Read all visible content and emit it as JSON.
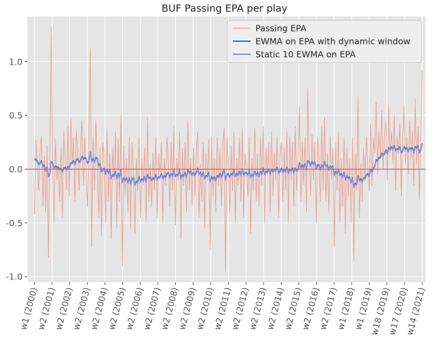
{
  "chart_data": {
    "type": "line",
    "title": "BUF Passing EPA per play",
    "xlabel": "",
    "ylabel": "",
    "ylim": [
      -1.05,
      1.42
    ],
    "xlim": [
      -5,
      560
    ],
    "grid": true,
    "legend_position": "top-right",
    "yticks": [
      -1.0,
      -0.5,
      0.0,
      0.5,
      1.0
    ],
    "ytick_labels": [
      "-1.0",
      "-0.5",
      "0.0",
      "0.5",
      "1.0"
    ],
    "xticks": [
      {
        "x": 5,
        "label": "w1 (2000)"
      },
      {
        "x": 30,
        "label": "w2 (2001)"
      },
      {
        "x": 55,
        "label": "w2 (2002)"
      },
      {
        "x": 80,
        "label": "w2 (2003)"
      },
      {
        "x": 105,
        "label": "w2 (2004)"
      },
      {
        "x": 130,
        "label": "w2 (2005)"
      },
      {
        "x": 155,
        "label": "w2 (2006)"
      },
      {
        "x": 180,
        "label": "w2 (2007)"
      },
      {
        "x": 205,
        "label": "w2 (2008)"
      },
      {
        "x": 230,
        "label": "w2 (2009)"
      },
      {
        "x": 255,
        "label": "w2 (2010)"
      },
      {
        "x": 280,
        "label": "w2 (2011)"
      },
      {
        "x": 305,
        "label": "w2 (2012)"
      },
      {
        "x": 330,
        "label": "w2 (2013)"
      },
      {
        "x": 355,
        "label": "w2 (2014)"
      },
      {
        "x": 380,
        "label": "w2 (2015)"
      },
      {
        "x": 405,
        "label": "w2 (2016)"
      },
      {
        "x": 430,
        "label": "w2 (2017)"
      },
      {
        "x": 455,
        "label": "w1 (2018)"
      },
      {
        "x": 480,
        "label": "w1 (2019)"
      },
      {
        "x": 505,
        "label": "w18 (2019)"
      },
      {
        "x": 530,
        "label": "w17 (2020)"
      },
      {
        "x": 555,
        "label": "w14 (2021)"
      }
    ],
    "hline": {
      "y": 0.0,
      "color": "#e8585a"
    },
    "colors": {
      "background": "#e5e5e5",
      "grid": "#ffffff",
      "passing_epa": "#e8a090",
      "dynamic": "#2a7ab8",
      "static": "#8f8fe0"
    },
    "series": [
      {
        "name": "Passing EPA",
        "values": [
          -0.42,
          0.27,
          0.05,
          -0.2,
          0.18,
          0.3,
          -0.35,
          0.12,
          -0.4,
          0.22,
          -0.82,
          0.15,
          1.32,
          0.0,
          -0.5,
          0.28,
          -0.1,
          0.05,
          -0.3,
          0.2,
          -0.45,
          0.35,
          0.1,
          -0.2,
          0.4,
          -0.25,
          0.48,
          0.05,
          0.3,
          -0.3,
          0.35,
          0.15,
          -0.2,
          0.22,
          0.45,
          -0.15,
          0.3,
          0.0,
          -0.35,
          0.25,
          1.12,
          -0.72,
          0.3,
          -0.2,
          0.45,
          0.05,
          -0.45,
          0.2,
          -0.62,
          0.25,
          0.1,
          -0.5,
          0.38,
          -0.3,
          0.15,
          -0.65,
          0.2,
          -0.1,
          0.35,
          -0.55,
          0.28,
          -0.3,
          0.5,
          -0.9,
          0.22,
          -0.25,
          0.1,
          -0.4,
          0.3,
          -0.55,
          0.25,
          0.0,
          -0.6,
          0.1,
          -0.2,
          0.3,
          -0.45,
          0.1,
          -0.15,
          0.2,
          -0.5,
          0.48,
          -0.3,
          0.05,
          -0.35,
          0.15,
          -0.2,
          0.3,
          -0.45,
          0.15,
          -0.05,
          0.25,
          -0.5,
          0.1,
          -0.15,
          0.3,
          0.05,
          -0.35,
          0.25,
          -0.2,
          0.4,
          -0.52,
          0.1,
          -0.1,
          0.35,
          -0.65,
          0.2,
          -0.15,
          0.25,
          -0.4,
          0.45,
          -0.2,
          0.1,
          -0.35,
          0.2,
          -0.25,
          0.15,
          0.35,
          -0.45,
          0.05,
          -0.3,
          0.25,
          -0.55,
          0.15,
          -0.1,
          0.28,
          -0.75,
          0.3,
          -0.25,
          0.1,
          -0.4,
          0.3,
          -0.15,
          0.2,
          -0.35,
          0.25,
          0.38,
          -0.95,
          0.3,
          0.05,
          -0.4,
          0.22,
          -0.2,
          0.35,
          -0.5,
          0.1,
          -0.15,
          0.3,
          -0.3,
          0.38,
          -0.45,
          0.15,
          0.0,
          -0.25,
          0.3,
          -0.6,
          0.1,
          -0.2,
          0.38,
          -0.3,
          0.15,
          -0.35,
          0.3,
          -0.15,
          0.4,
          -0.5,
          0.2,
          -0.05,
          0.25,
          -0.4,
          0.35,
          -0.25,
          0.15,
          -0.1,
          0.3,
          -0.45,
          0.1,
          0.25,
          -0.3,
          0.2,
          -0.2,
          0.35,
          -0.5,
          0.3,
          -0.1,
          0.25,
          -0.35,
          0.4,
          -0.2,
          0.1,
          0.58,
          -0.3,
          0.25,
          -0.15,
          0.3,
          -0.4,
          0.75,
          0.05,
          -0.25,
          0.32,
          -0.1,
          0.25,
          -0.5,
          0.3,
          0.05,
          -0.3,
          0.4,
          -0.2,
          0.48,
          -0.3,
          0.15,
          -0.4,
          0.3,
          -0.1,
          0.2,
          -0.72,
          0.25,
          -0.2,
          0.35,
          -0.5,
          0.1,
          -0.35,
          0.3,
          -0.6,
          0.2,
          -0.25,
          0.1,
          -0.5,
          0.3,
          -0.85,
          0.15,
          -0.2,
          0.68,
          -0.45,
          0.05,
          -0.3,
          0.2,
          -0.1,
          0.3,
          0.05,
          -0.2,
          0.42,
          -0.15,
          0.3,
          0.15,
          0.62,
          -0.05,
          0.35,
          0.1,
          0.55,
          0.0,
          0.3,
          0.45,
          -0.1,
          0.6,
          0.15,
          0.35,
          0.05,
          0.5,
          -0.2,
          0.3,
          0.15,
          0.42,
          -0.25,
          0.25,
          0.58,
          0.05,
          0.3,
          -0.05,
          0.45,
          0.1,
          0.35,
          -0.15,
          0.65,
          0.05,
          0.4,
          -0.28,
          0.3,
          0.92
        ]
      },
      {
        "name": "EWMA on EPA with dynamic window",
        "values": [
          0.1,
          0.09,
          0.08,
          0.05,
          0.06,
          0.08,
          0.03,
          0.04,
          -0.01,
          0.02,
          -0.06,
          -0.04,
          0.07,
          0.06,
          0.01,
          0.03,
          0.02,
          0.02,
          -0.0,
          0.01,
          -0.02,
          0.01,
          0.02,
          0.0,
          0.03,
          0.01,
          0.06,
          0.06,
          0.08,
          0.05,
          0.09,
          0.1,
          0.07,
          0.08,
          0.12,
          0.1,
          0.11,
          0.1,
          0.06,
          0.08,
          0.16,
          0.08,
          0.1,
          0.07,
          0.11,
          0.1,
          0.04,
          0.05,
          -0.02,
          0.0,
          0.01,
          -0.04,
          -0.0,
          -0.03,
          -0.01,
          -0.08,
          -0.05,
          -0.06,
          -0.02,
          -0.08,
          -0.04,
          -0.07,
          -0.01,
          -0.12,
          -0.08,
          -0.1,
          -0.08,
          -0.12,
          -0.08,
          -0.13,
          -0.09,
          -0.08,
          -0.14,
          -0.11,
          -0.12,
          -0.07,
          -0.11,
          -0.09,
          -0.1,
          -0.07,
          -0.11,
          -0.05,
          -0.08,
          -0.07,
          -0.1,
          -0.08,
          -0.09,
          -0.05,
          -0.09,
          -0.07,
          -0.07,
          -0.04,
          -0.08,
          -0.06,
          -0.07,
          -0.04,
          -0.03,
          -0.07,
          -0.04,
          -0.06,
          -0.01,
          -0.06,
          -0.05,
          -0.05,
          -0.01,
          -0.08,
          -0.05,
          -0.06,
          -0.03,
          -0.07,
          -0.01,
          -0.03,
          -0.02,
          -0.05,
          -0.03,
          -0.05,
          -0.03,
          0.01,
          -0.04,
          -0.03,
          -0.06,
          -0.03,
          -0.08,
          -0.06,
          -0.06,
          -0.03,
          -0.11,
          -0.07,
          -0.09,
          -0.07,
          -0.1,
          -0.06,
          -0.07,
          -0.04,
          -0.07,
          -0.04,
          0.0,
          -0.09,
          -0.05,
          -0.04,
          -0.07,
          -0.04,
          -0.05,
          -0.01,
          -0.06,
          -0.04,
          -0.05,
          -0.02,
          -0.05,
          -0.0,
          -0.05,
          -0.03,
          -0.03,
          -0.05,
          -0.01,
          -0.07,
          -0.05,
          -0.06,
          -0.02,
          -0.05,
          -0.03,
          -0.06,
          -0.02,
          -0.04,
          0.01,
          -0.04,
          -0.02,
          -0.02,
          0.0,
          -0.04,
          0.0,
          -0.02,
          -0.0,
          -0.01,
          0.02,
          -0.03,
          -0.02,
          0.01,
          -0.02,
          0.0,
          -0.02,
          0.02,
          -0.03,
          0.0,
          -0.01,
          0.01,
          -0.03,
          0.01,
          -0.01,
          -0.0,
          0.06,
          0.02,
          0.04,
          0.02,
          0.05,
          0.0,
          0.08,
          0.07,
          0.04,
          0.07,
          0.05,
          0.07,
          0.01,
          0.04,
          0.04,
          0.0,
          0.04,
          0.02,
          0.07,
          0.03,
          0.04,
          -0.0,
          0.03,
          0.01,
          0.03,
          -0.05,
          -0.02,
          -0.04,
          -0.0,
          -0.05,
          -0.04,
          -0.07,
          -0.03,
          -0.09,
          -0.06,
          -0.08,
          -0.07,
          -0.12,
          -0.08,
          -0.16,
          -0.13,
          -0.14,
          -0.06,
          -0.1,
          -0.09,
          -0.11,
          -0.08,
          -0.08,
          -0.05,
          -0.04,
          -0.06,
          0.0,
          -0.02,
          0.01,
          0.03,
          0.09,
          0.08,
          0.11,
          0.11,
          0.15,
          0.13,
          0.15,
          0.18,
          0.15,
          0.2,
          0.19,
          0.21,
          0.19,
          0.22,
          0.18,
          0.19,
          0.19,
          0.21,
          0.16,
          0.17,
          0.21,
          0.19,
          0.2,
          0.17,
          0.2,
          0.19,
          0.2,
          0.16,
          0.21,
          0.2,
          0.22,
          0.16,
          0.18,
          0.24
        ]
      },
      {
        "name": "Static 10 EWMA on EPA",
        "values": [
          0.09,
          0.08,
          0.07,
          0.04,
          0.05,
          0.07,
          0.02,
          0.03,
          -0.02,
          0.01,
          -0.07,
          -0.05,
          0.06,
          0.05,
          0.0,
          0.02,
          0.01,
          0.01,
          -0.01,
          0.0,
          -0.03,
          0.0,
          0.01,
          -0.01,
          0.02,
          0.0,
          0.05,
          0.05,
          0.07,
          0.04,
          0.08,
          0.09,
          0.06,
          0.07,
          0.11,
          0.09,
          0.1,
          0.09,
          0.05,
          0.07,
          0.15,
          0.07,
          0.09,
          0.06,
          0.1,
          0.09,
          0.03,
          0.04,
          -0.03,
          -0.01,
          0.0,
          -0.05,
          -0.01,
          -0.04,
          -0.02,
          -0.09,
          -0.06,
          -0.07,
          -0.03,
          -0.09,
          -0.05,
          -0.08,
          -0.02,
          -0.13,
          -0.09,
          -0.11,
          -0.09,
          -0.13,
          -0.09,
          -0.14,
          -0.1,
          -0.09,
          -0.15,
          -0.12,
          -0.13,
          -0.08,
          -0.12,
          -0.1,
          -0.11,
          -0.08,
          -0.12,
          -0.06,
          -0.09,
          -0.08,
          -0.11,
          -0.09,
          -0.1,
          -0.06,
          -0.1,
          -0.08,
          -0.08,
          -0.05,
          -0.09,
          -0.07,
          -0.08,
          -0.05,
          -0.04,
          -0.08,
          -0.05,
          -0.07,
          -0.02,
          -0.07,
          -0.06,
          -0.06,
          -0.02,
          -0.09,
          -0.06,
          -0.07,
          -0.04,
          -0.08,
          -0.02,
          -0.04,
          -0.03,
          -0.06,
          -0.04,
          -0.06,
          -0.04,
          0.0,
          -0.05,
          -0.04,
          -0.07,
          -0.04,
          -0.09,
          -0.07,
          -0.07,
          -0.04,
          -0.12,
          -0.08,
          -0.1,
          -0.08,
          -0.11,
          -0.07,
          -0.08,
          -0.05,
          -0.08,
          -0.05,
          -0.01,
          -0.1,
          -0.06,
          -0.05,
          -0.08,
          -0.05,
          -0.06,
          -0.02,
          -0.07,
          -0.05,
          -0.06,
          -0.03,
          -0.06,
          -0.01,
          -0.06,
          -0.04,
          -0.04,
          -0.06,
          -0.02,
          -0.08,
          -0.06,
          -0.07,
          -0.03,
          -0.06,
          -0.04,
          -0.07,
          -0.03,
          -0.05,
          0.0,
          -0.05,
          -0.03,
          -0.03,
          -0.01,
          -0.05,
          -0.01,
          -0.03,
          -0.01,
          -0.02,
          0.01,
          -0.04,
          -0.03,
          0.0,
          -0.03,
          -0.01,
          -0.03,
          0.01,
          -0.04,
          -0.01,
          -0.02,
          0.0,
          -0.04,
          0.0,
          -0.02,
          -0.01,
          0.05,
          0.01,
          0.03,
          0.01,
          0.04,
          -0.01,
          0.07,
          0.06,
          0.03,
          0.06,
          0.04,
          0.06,
          0.0,
          0.03,
          0.03,
          -0.01,
          0.03,
          0.01,
          0.06,
          0.02,
          0.03,
          -0.01,
          0.02,
          0.0,
          0.02,
          -0.06,
          -0.03,
          -0.05,
          -0.01,
          -0.06,
          -0.05,
          -0.08,
          -0.04,
          -0.1,
          -0.07,
          -0.09,
          -0.08,
          -0.13,
          -0.09,
          -0.17,
          -0.14,
          -0.15,
          -0.07,
          -0.11,
          -0.1,
          -0.12,
          -0.09,
          -0.09,
          -0.06,
          -0.05,
          -0.07,
          -0.01,
          -0.03,
          0.0,
          0.02,
          0.08,
          0.07,
          0.1,
          0.1,
          0.14,
          0.12,
          0.14,
          0.17,
          0.14,
          0.19,
          0.18,
          0.2,
          0.18,
          0.21,
          0.17,
          0.18,
          0.18,
          0.2,
          0.15,
          0.16,
          0.2,
          0.18,
          0.19,
          0.16,
          0.19,
          0.18,
          0.19,
          0.15,
          0.2,
          0.19,
          0.21,
          0.15,
          0.17,
          0.23
        ]
      }
    ]
  }
}
